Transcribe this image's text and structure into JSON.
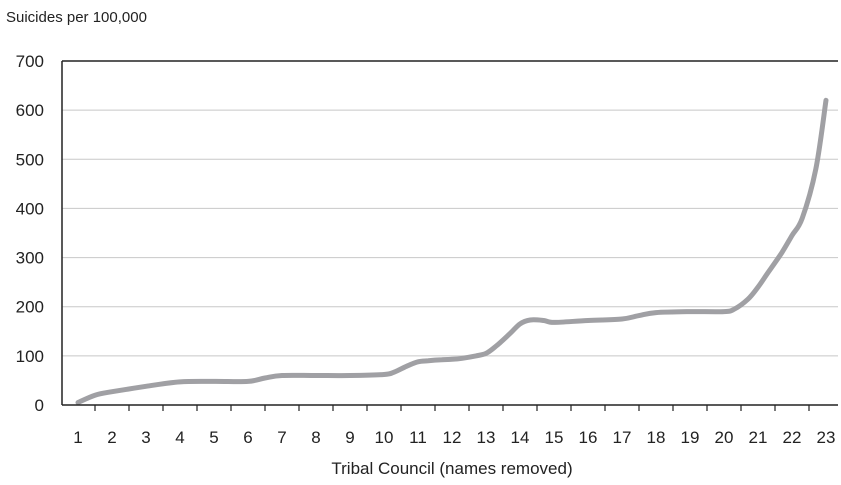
{
  "chart_data": {
    "type": "line",
    "title": "",
    "ylabel": "Suicides per 100,000",
    "xlabel": "Tribal Council (names removed)",
    "ylim": [
      0,
      700
    ],
    "yticks": [
      0,
      100,
      200,
      300,
      400,
      500,
      600,
      700
    ],
    "grid": "horizontal",
    "legend": "none",
    "line_color": "#a0a0a4",
    "categories": [
      "1",
      "2",
      "3",
      "4",
      "5",
      "6",
      "7",
      "8",
      "9",
      "10",
      "11",
      "12",
      "13",
      "14",
      "15",
      "16",
      "17",
      "18",
      "19",
      "20",
      "21",
      "22",
      "23"
    ],
    "series": [
      {
        "x": [
          1,
          1.5,
          2,
          3,
          4,
          5,
          6,
          6.5,
          7,
          8,
          9,
          10,
          10.3,
          10.7,
          11,
          11.3,
          11.7,
          12,
          12.3,
          12.7,
          13,
          13.3,
          13.7,
          14,
          14.3,
          14.7,
          15,
          16,
          17,
          17.5,
          18,
          19,
          20,
          20.3,
          20.7,
          21,
          21.3,
          21.7,
          22,
          22.3,
          22.7,
          23
        ],
        "y": [
          5,
          20,
          27,
          38,
          47,
          48,
          48,
          55,
          60,
          60,
          60,
          62,
          67,
          80,
          88,
          90,
          92,
          93,
          95,
          100,
          105,
          120,
          145,
          165,
          173,
          172,
          168,
          172,
          175,
          182,
          188,
          190,
          190,
          195,
          215,
          240,
          270,
          310,
          345,
          380,
          480,
          620
        ]
      }
    ]
  }
}
